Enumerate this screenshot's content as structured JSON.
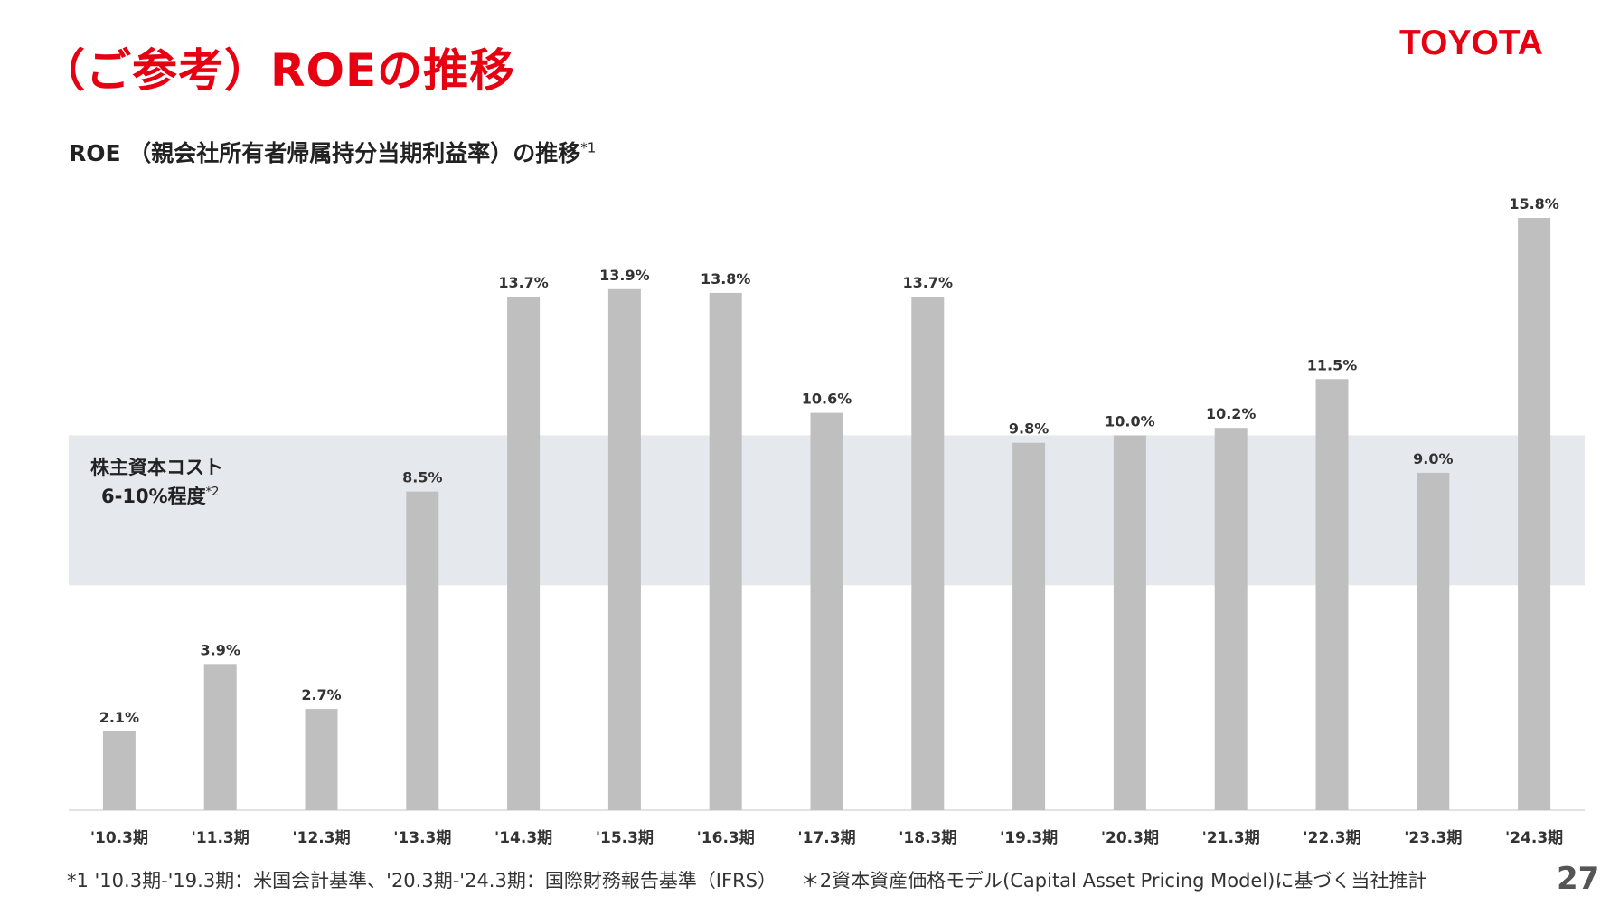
{
  "page": {
    "title": "（ご参考）ROEの推移",
    "logo_text": "TOYOTA",
    "page_number": "27",
    "brand_color": "#e60012"
  },
  "chart_data": {
    "type": "bar",
    "title": "ROE （親会社所有者帰属持分当期利益率）の推移",
    "title_note": "*1",
    "categories": [
      "'10.3期",
      "'11.3期",
      "'12.3期",
      "'13.3期",
      "'14.3期",
      "'15.3期",
      "'16.3期",
      "'17.3期",
      "'18.3期",
      "'19.3期",
      "'20.3期",
      "'21.3期",
      "'22.3期",
      "'23.3期",
      "'24.3期"
    ],
    "values": [
      2.1,
      3.9,
      2.7,
      8.5,
      13.7,
      13.9,
      13.8,
      10.6,
      13.7,
      9.8,
      10.0,
      10.2,
      11.5,
      9.0,
      15.8
    ],
    "value_labels": [
      "2.1%",
      "3.9%",
      "2.7%",
      "8.5%",
      "13.7%",
      "13.9%",
      "13.8%",
      "10.6%",
      "13.7%",
      "9.8%",
      "10.0%",
      "10.2%",
      "11.5%",
      "9.0%",
      "15.8%"
    ],
    "ylim": [
      0,
      16.5
    ],
    "bar_color": "#bfbfbf",
    "band": {
      "range": [
        6,
        10
      ],
      "label_line1": "株主資本コスト",
      "label_line2": "6-10%程度",
      "label_note": "*2",
      "color": "#e5e8ec"
    },
    "grid": false
  },
  "footnotes": {
    "note1": "*1 '10.3期-'19.3期：米国会計基準、'20.3期-'24.3期：国際財務報告基準（IFRS）",
    "note2": "＊2資本資産価格モデル(Capital Asset Pricing Model)に基づく当社推計"
  }
}
